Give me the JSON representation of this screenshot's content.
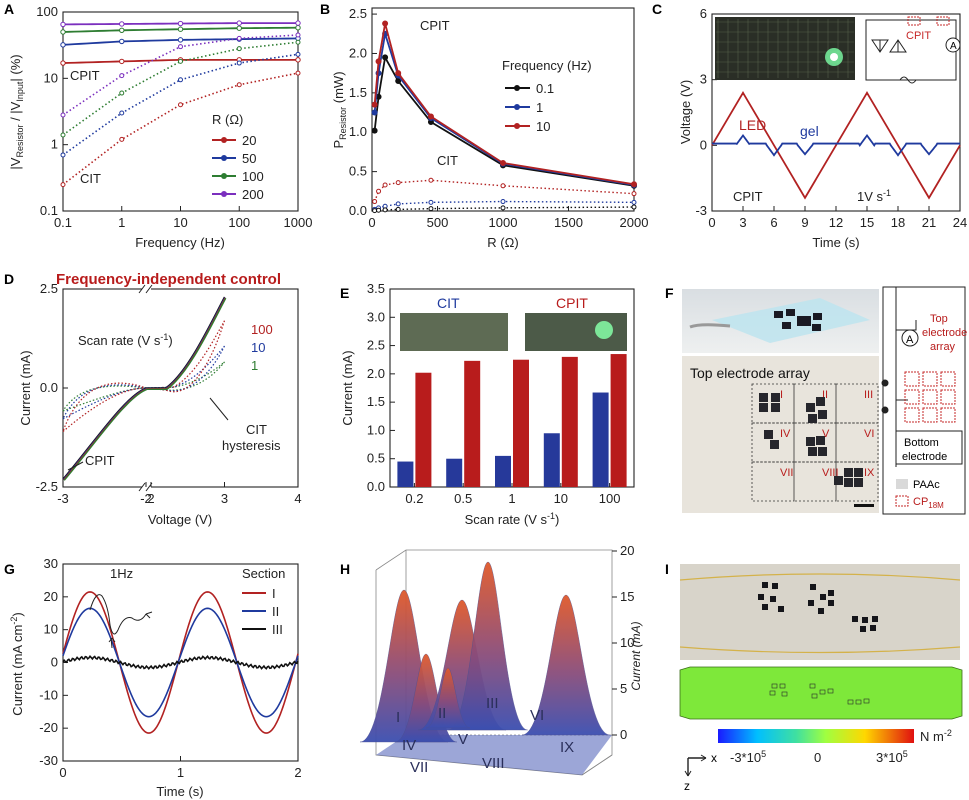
{
  "panels": {
    "A": {
      "label": "A",
      "ylabel": "|V_Resistor| / |V_Input| (%)",
      "xlabel": "Frequency (Hz)",
      "xticks": [
        "0.1",
        "1",
        "10",
        "100",
        "1000"
      ],
      "yticks": [
        "0.1",
        "1",
        "10",
        "100"
      ],
      "legend_title": "R (Ω)",
      "legend": [
        "20",
        "50",
        "100",
        "200"
      ],
      "ann_cpit": "CPIT",
      "ann_cit": "CIT"
    },
    "B": {
      "label": "B",
      "ylabel": "P_Resistor (mW)",
      "xlabel": "R (Ω)",
      "xticks": [
        "0",
        "500",
        "1000",
        "1500",
        "2000"
      ],
      "yticks": [
        "0.0",
        "0.5",
        "1.0",
        "1.5",
        "2.0",
        "2.5"
      ],
      "legend_title": "Frequency (Hz)",
      "legend": [
        "0.1",
        "1",
        "10"
      ],
      "ann_cpit": "CPIT",
      "ann_cit": "CIT"
    },
    "C": {
      "label": "C",
      "ylabel": "Voltage (V)",
      "xlabel": "Time (s)",
      "xticks": [
        "0",
        "3",
        "6",
        "9",
        "12",
        "15",
        "18",
        "21",
        "24"
      ],
      "yticks": [
        "-3",
        "0",
        "3",
        "6"
      ],
      "ann_led": "LED",
      "ann_gel": "gel",
      "ann_cpit": "CPIT",
      "ann_rate": "1V s",
      "ann_rate_exp": "-1",
      "ann_circuit": "CPIT"
    },
    "D": {
      "label": "D",
      "title": "Frequency-independent control",
      "ylabel": "Current (mA)",
      "xlabel": "Voltage (V)",
      "xticks": [
        "-3",
        "-2",
        "2",
        "3",
        "4"
      ],
      "yticks": [
        "-2.5",
        "0.0",
        "2.5"
      ],
      "ann_scan": "Scan rate (V s",
      "ann_scan_exp": "-1",
      "ann_scan_end": ")",
      "rates": [
        "100",
        "10",
        "1"
      ],
      "ann_cit1": "CIT",
      "ann_cit2": "hysteresis",
      "ann_cpit": "CPIT"
    },
    "E": {
      "label": "E",
      "ylabel": "Current (mA)",
      "xlabel": "Scan rate (V s",
      "xlabel_exp": "-1",
      "xlabel_end": ")",
      "yticks": [
        "0.0",
        "0.5",
        "1.0",
        "1.5",
        "2.0",
        "2.5",
        "3.0",
        "3.5"
      ],
      "ann_cit": "CIT",
      "ann_cpit": "CPIT"
    },
    "F": {
      "label": "F",
      "ann_array": "Top electrode array",
      "roman": [
        "I",
        "II",
        "III",
        "IV",
        "V",
        "VI",
        "VII",
        "VIII",
        "IX"
      ],
      "sch_top": "Top",
      "sch_top2": "electrode",
      "sch_top3": "array",
      "sch_bottom": "Bottom",
      "sch_bottom2": "electrode",
      "leg_paac": "PAAc",
      "leg_cp": "CP",
      "leg_cp_sub": "18M",
      "meter": "A"
    },
    "G": {
      "label": "G",
      "ylabel": "Current (mA cm",
      "ylabel_exp": "-2",
      "ylabel_end": ")",
      "xlabel": "Time (s)",
      "xticks": [
        "0",
        "1",
        "2"
      ],
      "yticks": [
        "-30",
        "-20",
        "-10",
        "0",
        "10",
        "20",
        "30"
      ],
      "ann_freq": "1Hz",
      "legend_title": "Section",
      "legend": [
        "I",
        "II",
        "III"
      ]
    },
    "H": {
      "label": "H",
      "zlabel": "Current (mA)",
      "zticks": [
        "0",
        "5",
        "10",
        "15",
        "20"
      ],
      "roman": [
        "I",
        "II",
        "III",
        "IV",
        "V",
        "VI",
        "VII",
        "VIII",
        "IX"
      ]
    },
    "I": {
      "label": "I",
      "cb_unit": "N m",
      "cb_unit_exp": "-2",
      "cb_ticks": [
        "-3*10",
        "0",
        "3*10"
      ],
      "cb_exp": "5",
      "axis_x": "x",
      "axis_z": "z"
    }
  },
  "colors": {
    "red": "#b22222",
    "blue": "#1f3a9e",
    "green": "#2e7d32",
    "purple": "#7b2fbe",
    "black": "#111111",
    "bar_blue": "#26399a",
    "bar_red": "#b81c1c",
    "title_red": "#b81c1c"
  },
  "chart_data": [
    {
      "panel": "A",
      "type": "line",
      "xscale": "log",
      "yscale": "log",
      "x": [
        0.1,
        1,
        10,
        100,
        1000
      ],
      "xlim": [
        0.1,
        1000
      ],
      "ylim": [
        0.1,
        100
      ],
      "title": "",
      "xlabel": "Frequency (Hz)",
      "ylabel": "|V_Resistor| / |V_Input| (%)",
      "series": [
        {
          "name": "CPIT 20",
          "values": [
            17,
            18,
            19,
            19,
            19
          ]
        },
        {
          "name": "CPIT 50",
          "values": [
            32,
            36,
            38,
            39,
            40
          ]
        },
        {
          "name": "CPIT 100",
          "values": [
            50,
            53,
            55,
            57,
            58
          ]
        },
        {
          "name": "CPIT 200",
          "values": [
            65,
            66,
            67,
            68,
            68
          ]
        },
        {
          "name": "CIT 20",
          "values": [
            0.25,
            1.2,
            4,
            8,
            12
          ]
        },
        {
          "name": "CIT 50",
          "values": [
            0.7,
            3,
            9.5,
            17,
            23
          ]
        },
        {
          "name": "CIT 100",
          "values": [
            1.4,
            6,
            18,
            28,
            35
          ]
        },
        {
          "name": "CIT 200",
          "values": [
            2.8,
            11,
            30,
            40,
            45
          ]
        }
      ]
    },
    {
      "panel": "B",
      "type": "line",
      "x": [
        20,
        50,
        100,
        200,
        450,
        1000,
        2000
      ],
      "xlim": [
        0,
        2000
      ],
      "ylim": [
        0,
        2.5
      ],
      "xlabel": "R (Ω)",
      "ylabel": "P_Resistor (mW)",
      "series": [
        {
          "name": "CPIT 0.1",
          "values": [
            1.02,
            1.45,
            1.95,
            1.65,
            1.13,
            0.58,
            0.32
          ]
        },
        {
          "name": "CPIT 1",
          "values": [
            1.25,
            1.75,
            2.25,
            1.72,
            1.18,
            0.6,
            0.33
          ]
        },
        {
          "name": "CPIT 10",
          "values": [
            1.35,
            1.9,
            2.38,
            1.75,
            1.2,
            0.61,
            0.34
          ]
        },
        {
          "name": "CIT 10",
          "values": [
            0.12,
            0.25,
            0.33,
            0.36,
            0.39,
            0.32,
            0.22
          ]
        },
        {
          "name": "CIT 1",
          "values": [
            0.02,
            0.04,
            0.06,
            0.09,
            0.11,
            0.12,
            0.11
          ]
        },
        {
          "name": "CIT 0.1",
          "values": [
            0.005,
            0.01,
            0.015,
            0.02,
            0.03,
            0.04,
            0.05
          ]
        }
      ]
    },
    {
      "panel": "C",
      "type": "line",
      "xlim": [
        0,
        24
      ],
      "ylim": [
        -3,
        6
      ],
      "xlabel": "Time (s)",
      "ylabel": "Voltage (V)",
      "series": [
        {
          "name": "LED",
          "amplitude": 2.4,
          "period_s": 12
        },
        {
          "name": "gel",
          "peak": 0.45,
          "valley": -0.45
        }
      ]
    },
    {
      "panel": "D",
      "type": "line",
      "xlabel": "Voltage (V)",
      "ylabel": "Current (mA)",
      "ylim": [
        -2.5,
        2.5
      ],
      "series": [
        {
          "name": "CPIT"
        },
        {
          "name": "CIT 100"
        },
        {
          "name": "CIT 10"
        },
        {
          "name": "CIT 1"
        }
      ]
    },
    {
      "panel": "E",
      "type": "bar",
      "categories": [
        "0.2",
        "0.5",
        "1",
        "10",
        "100"
      ],
      "ylim": [
        0,
        3.5
      ],
      "xlabel": "Scan rate (V s-1)",
      "ylabel": "Current (mA)",
      "series": [
        {
          "name": "CIT",
          "values": [
            0.45,
            0.5,
            0.55,
            0.95,
            1.67
          ]
        },
        {
          "name": "CPIT",
          "values": [
            2.02,
            2.23,
            2.25,
            2.3,
            2.35
          ]
        }
      ]
    },
    {
      "panel": "G",
      "type": "line",
      "xlim": [
        0,
        2
      ],
      "ylim": [
        -30,
        30
      ],
      "xlabel": "Time (s)",
      "ylabel": "Current (mA cm-2)",
      "series": [
        {
          "name": "I",
          "amplitude": 21.5,
          "freq_hz": 1
        },
        {
          "name": "II",
          "amplitude": 16.5,
          "freq_hz": 1
        },
        {
          "name": "III",
          "amplitude": 1.5,
          "freq_hz": 1
        }
      ]
    },
    {
      "panel": "H",
      "type": "heatmap",
      "zlim": [
        0,
        20
      ],
      "sections": [
        "I",
        "II",
        "III",
        "IV",
        "V",
        "VI",
        "VII",
        "VIII",
        "IX"
      ],
      "zlabel": "Current (mA)"
    }
  ]
}
